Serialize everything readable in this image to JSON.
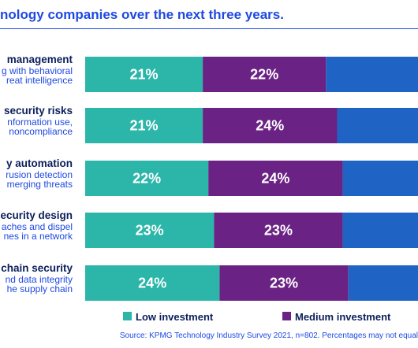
{
  "title": "nology companies over the next three years.",
  "source": "Source: KPMG Technology Industry Survey 2021, n=802.  Percentages may not equal",
  "colors": {
    "low": "#2cb5a9",
    "medium": "#6a2384",
    "high": "#1f64c4",
    "title": "#1e49e2",
    "row_title": "#0b1f5c"
  },
  "chart_data": {
    "type": "bar",
    "orientation": "horizontal",
    "stacked": true,
    "categories": [
      {
        "title": "management",
        "desc": [
          "g with behavioral",
          "reat intelligence"
        ]
      },
      {
        "title": "security risks",
        "desc": [
          "nformation use,",
          "noncompliance"
        ]
      },
      {
        "title": "y automation",
        "desc": [
          "rusion detection",
          "merging threats"
        ]
      },
      {
        "title": "ecurity design",
        "desc": [
          "aches and dispel",
          "nes in a network"
        ]
      },
      {
        "title": "chain security",
        "desc": [
          "nd data integrity",
          "he supply chain"
        ]
      }
    ],
    "series": [
      {
        "name": "Low investment",
        "values": [
          21,
          21,
          22,
          23,
          24
        ],
        "labels": [
          "21%",
          "21%",
          "22%",
          "23%",
          "24%"
        ]
      },
      {
        "name": "Medium investment",
        "values": [
          22,
          24,
          24,
          23,
          23
        ],
        "labels": [
          "22%",
          "24%",
          "24%",
          "23%",
          "23%"
        ]
      }
    ],
    "legend_position": "bottom"
  }
}
